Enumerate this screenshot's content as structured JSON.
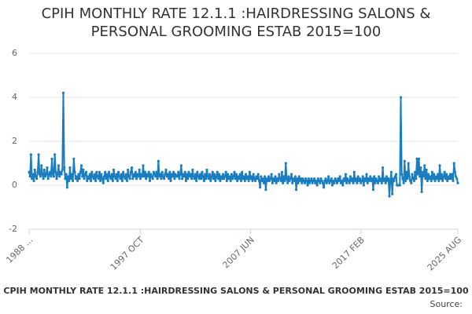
{
  "chart_data": {
    "type": "line",
    "title": "CPIH MONTHLY RATE 12.1.1 :HAIRDRESSING SALONS & PERSONAL GROOMING ESTAB 2015=100",
    "caption": "CPIH MONTHLY RATE 12.1.1 :HAIRDRESSING SALONS & PERSONAL GROOMING ESTAB 2015=100",
    "source": "Source:",
    "color": "#1a7dc0",
    "grid": true,
    "ylim": [
      -2,
      6
    ],
    "yticks": [
      -2,
      0,
      2,
      4,
      6
    ],
    "categories": [
      "1988 ...",
      null,
      null,
      null,
      null,
      null,
      null,
      null,
      null,
      null,
      null,
      null,
      null,
      null,
      null,
      null,
      null,
      null,
      null,
      null,
      null,
      null,
      null,
      null,
      null,
      null,
      null,
      null,
      null,
      null,
      null,
      null,
      null,
      null,
      null,
      null,
      null,
      null,
      null,
      null,
      null,
      null,
      null,
      null,
      null,
      null,
      null,
      null,
      null,
      null,
      null,
      null,
      null,
      null,
      null,
      null,
      null,
      null,
      null,
      null,
      null,
      null,
      null,
      null,
      null,
      null,
      null,
      null,
      null,
      null,
      null,
      null,
      null,
      null,
      null,
      null,
      null,
      null,
      null,
      null,
      null,
      null,
      null,
      null,
      null,
      null,
      null,
      null,
      null,
      null,
      null,
      null,
      null,
      null,
      null,
      null,
      null,
      null,
      null,
      null,
      null,
      null,
      null,
      null,
      null,
      null,
      null,
      null,
      null,
      null,
      null,
      null,
      null,
      null,
      null,
      null,
      null,
      "1997 OCT",
      null,
      null,
      null,
      null,
      null,
      null,
      null,
      null,
      null,
      null,
      null,
      null,
      null,
      null,
      null,
      null,
      null,
      null,
      null,
      null,
      null,
      null,
      null,
      null,
      null,
      null,
      null,
      null,
      null,
      null,
      null,
      null,
      null,
      null,
      null,
      null,
      null,
      null,
      null,
      null,
      null,
      null,
      null,
      null,
      null,
      null,
      null,
      null,
      null,
      null,
      null,
      null,
      null,
      null,
      null,
      null,
      null,
      null,
      null,
      null,
      null,
      null,
      null,
      null,
      null,
      null,
      null,
      null,
      null,
      null,
      null,
      null,
      null,
      null,
      null,
      null,
      null,
      null,
      null,
      null,
      null,
      null,
      null,
      null,
      null,
      null,
      null,
      null,
      null,
      null,
      null,
      null,
      null,
      null,
      null,
      null,
      null,
      null,
      null,
      null,
      null,
      null,
      null,
      null,
      null,
      null,
      null,
      null,
      null,
      null,
      null,
      null,
      null,
      null,
      null,
      "2007 JUN",
      null,
      null,
      null,
      null,
      null,
      null,
      null,
      null,
      null,
      null,
      null,
      null,
      null,
      null,
      null,
      null,
      null,
      null,
      null,
      null,
      null,
      null,
      null,
      null,
      null,
      null,
      null,
      null,
      null,
      null,
      null,
      null,
      null,
      null,
      null,
      null,
      null,
      null,
      null,
      null,
      null,
      null,
      null,
      null,
      null,
      null,
      null,
      null,
      null,
      null,
      null,
      null,
      null,
      null,
      null,
      null,
      null,
      null,
      null,
      null,
      null,
      null,
      null,
      null,
      null,
      null,
      null,
      null,
      null,
      null,
      null,
      null,
      null,
      null,
      null,
      null,
      null,
      null,
      null,
      null,
      null,
      null,
      null,
      null,
      null,
      null,
      null,
      null,
      null,
      null,
      null,
      null,
      null,
      null,
      null,
      null,
      null,
      null,
      null,
      null,
      null,
      null,
      null,
      null,
      null,
      null,
      null,
      null,
      null,
      null,
      null,
      null,
      null,
      null,
      null,
      "2017 FEB",
      null,
      null,
      null,
      null,
      null,
      null,
      null,
      null,
      null,
      null,
      null,
      null,
      null,
      null,
      null,
      null,
      null,
      null,
      null,
      null,
      null,
      null,
      null,
      null,
      null,
      null,
      null,
      null,
      null,
      null,
      null,
      null,
      null,
      null,
      null,
      null,
      null,
      null,
      null,
      null,
      null,
      null,
      null,
      null,
      null,
      null,
      null,
      null,
      null,
      null,
      null,
      null,
      null,
      null,
      null,
      null,
      null,
      null,
      null,
      null,
      null,
      null,
      null,
      null,
      null,
      null,
      null,
      null,
      null,
      null,
      null,
      null,
      null,
      null,
      null,
      null,
      null,
      null,
      null,
      null,
      null,
      null,
      null,
      null,
      null,
      null,
      null,
      null,
      null,
      null,
      null,
      null,
      null,
      null,
      null,
      null,
      null,
      null,
      null,
      null,
      null,
      "2025 AUG"
    ],
    "values": [
      0.6,
      0.4,
      1.4,
      0.3,
      0.5,
      0.2,
      0.7,
      0.4,
      0.3,
      0.6,
      1.4,
      0.5,
      0.4,
      0.9,
      0.5,
      0.3,
      0.7,
      0.4,
      0.5,
      0.8,
      0.3,
      0.5,
      0.6,
      0.4,
      1.2,
      0.5,
      0.4,
      1.4,
      0.6,
      0.3,
      0.5,
      0.9,
      0.4,
      0.6,
      0.5,
      0.7,
      4.2,
      0.8,
      0.3,
      0.5,
      -0.1,
      0.4,
      0.2,
      0.8,
      0.3,
      0.5,
      0.2,
      1.2,
      0.6,
      0.3,
      0.4,
      0.2,
      0.5,
      0.3,
      0.6,
      0.9,
      0.4,
      0.7,
      0.3,
      0.5,
      0.6,
      0.2,
      0.4,
      0.3,
      0.5,
      0.2,
      0.6,
      0.4,
      0.3,
      0.5,
      0.2,
      0.6,
      0.4,
      0.3,
      0.6,
      0.2,
      0.5,
      0.3,
      0.1,
      0.4,
      0.6,
      0.3,
      0.5,
      0.2,
      0.6,
      0.4,
      0.3,
      0.5,
      0.2,
      0.7,
      0.4,
      0.3,
      0.5,
      0.2,
      0.6,
      0.4,
      0.3,
      0.5,
      0.2,
      0.6,
      0.4,
      0.3,
      0.5,
      0.2,
      0.7,
      0.4,
      0.3,
      0.6,
      0.8,
      0.3,
      0.5,
      0.4,
      0.6,
      0.3,
      0.5,
      0.4,
      0.7,
      0.3,
      0.5,
      0.4,
      0.9,
      0.4,
      0.6,
      0.3,
      0.5,
      0.4,
      0.6,
      0.2,
      0.5,
      0.4,
      0.3,
      0.6,
      0.5,
      0.4,
      0.6,
      0.3,
      1.1,
      0.4,
      0.5,
      0.3,
      0.6,
      0.4,
      0.3,
      0.5,
      0.7,
      0.4,
      0.5,
      0.3,
      0.6,
      0.2,
      0.5,
      0.4,
      0.6,
      0.3,
      0.5,
      0.4,
      0.4,
      0.6,
      0.3,
      0.5,
      0.9,
      0.3,
      0.5,
      0.4,
      0.6,
      0.2,
      0.5,
      0.3,
      0.6,
      0.4,
      0.5,
      0.3,
      0.7,
      0.4,
      0.3,
      0.5,
      0.2,
      0.6,
      0.4,
      0.3,
      0.5,
      0.3,
      0.6,
      0.4,
      0.2,
      0.5,
      0.3,
      0.7,
      0.4,
      0.3,
      0.5,
      0.2,
      0.4,
      0.6,
      0.3,
      0.5,
      0.2,
      0.4,
      0.6,
      0.3,
      0.5,
      0.2,
      0.4,
      0.3,
      0.5,
      0.3,
      0.4,
      0.6,
      0.2,
      0.5,
      0.3,
      0.4,
      0.2,
      0.5,
      0.3,
      0.4,
      0.6,
      0.3,
      0.5,
      0.2,
      0.4,
      0.3,
      0.5,
      0.2,
      0.6,
      0.3,
      0.4,
      0.2,
      0.5,
      0.3,
      0.4,
      0.2,
      0.6,
      0.3,
      0.4,
      0.2,
      0.5,
      0.3,
      0.2,
      0.4,
      0.3,
      0.5,
      0.2,
      -0.1,
      0.4,
      0.2,
      0.3,
      0.1,
      0.4,
      -0.2,
      0.3,
      0.2,
      0.4,
      0.2,
      0.3,
      0.5,
      0.1,
      0.3,
      0.2,
      0.4,
      0.1,
      0.3,
      0.2,
      0.5,
      0.3,
      0.2,
      0.6,
      0.1,
      0.4,
      0.2,
      1.0,
      0.3,
      0.1,
      0.4,
      0.2,
      0.3,
      0.5,
      0.1,
      0.3,
      0.2,
      0.4,
      -0.2,
      0.3,
      0.1,
      0.4,
      0.2,
      0.3,
      0.1,
      0.3,
      0.2,
      0.1,
      0.3,
      0.2,
      0.0,
      0.3,
      0.1,
      0.2,
      0.3,
      0.1,
      0.2,
      0.3,
      0.1,
      0.2,
      0.0,
      0.3,
      0.2,
      0.1,
      0.3,
      0.2,
      0.1,
      -0.1,
      0.2,
      0.3,
      0.1,
      0.2,
      0.4,
      0.1,
      0.2,
      0.3,
      0.0,
      0.2,
      0.1,
      0.3,
      0.2,
      0.1,
      0.3,
      0.2,
      0.4,
      0.1,
      0.2,
      0.0,
      0.3,
      0.2,
      0.5,
      0.1,
      0.3,
      0.2,
      0.1,
      0.4,
      0.2,
      0.3,
      0.1,
      0.6,
      0.2,
      0.3,
      0.1,
      0.4,
      0.2,
      0.3,
      0.1,
      0.2,
      0.4,
      0.0,
      0.3,
      0.2,
      0.5,
      0.1,
      0.3,
      0.2,
      0.4,
      0.2,
      0.3,
      -0.2,
      0.4,
      0.1,
      0.3,
      0.2,
      0.1,
      0.4,
      0.2,
      0.3,
      0.1,
      0.8,
      0.2,
      0.3,
      0.1,
      0.4,
      0.2,
      0.3,
      -0.5,
      0.2,
      0.6,
      -0.4,
      0.3,
      0.2,
      0.4,
      0.5,
      0.0,
      0.0,
      0.0,
      0.0,
      4.0,
      0.5,
      0.3,
      0.1,
      1.1,
      0.2,
      0.6,
      0.3,
      1.0,
      0.4,
      0.2,
      0.1,
      0.5,
      0.3,
      0.2,
      0.6,
      0.3,
      1.2,
      0.5,
      1.2,
      0.4,
      0.8,
      -0.3,
      0.6,
      0.4,
      0.9,
      0.3,
      0.7,
      0.2,
      0.5,
      0.3,
      0.4,
      0.2,
      0.6,
      0.3,
      0.5,
      0.2,
      0.4,
      0.3,
      0.5,
      0.2,
      0.9,
      0.3,
      0.5,
      0.2,
      0.4,
      0.6,
      0.3,
      0.5,
      0.2,
      0.4,
      0.3,
      0.5,
      0.3,
      0.5,
      0.2,
      1.0,
      0.6,
      0.4,
      0.3,
      0.1
    ]
  }
}
